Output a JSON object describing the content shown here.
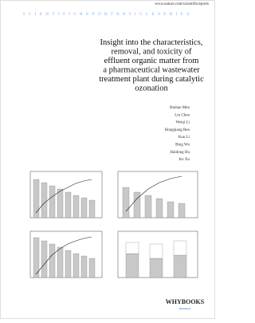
{
  "header": {
    "url": "www.nature.com/scientificreports",
    "series": "SCIENTIFICREPORTARTICLESERIES"
  },
  "title_lines": [
    "Insight into the characteristics,",
    "removal, and toxicity of",
    "effluent organic matter from",
    "a pharmaceutical wastewater",
    "treatment plant during catalytic",
    "ozonation"
  ],
  "authors": [
    "Shuhan Men",
    "Lin Chen",
    "Weiqi Li",
    "Hongqiang Ren",
    "Kun Li",
    "Bing Wu",
    "Haidong Hu",
    "Ke Xu"
  ],
  "publisher": {
    "name": "WHYBOOKS",
    "sub": "Publishers"
  }
}
